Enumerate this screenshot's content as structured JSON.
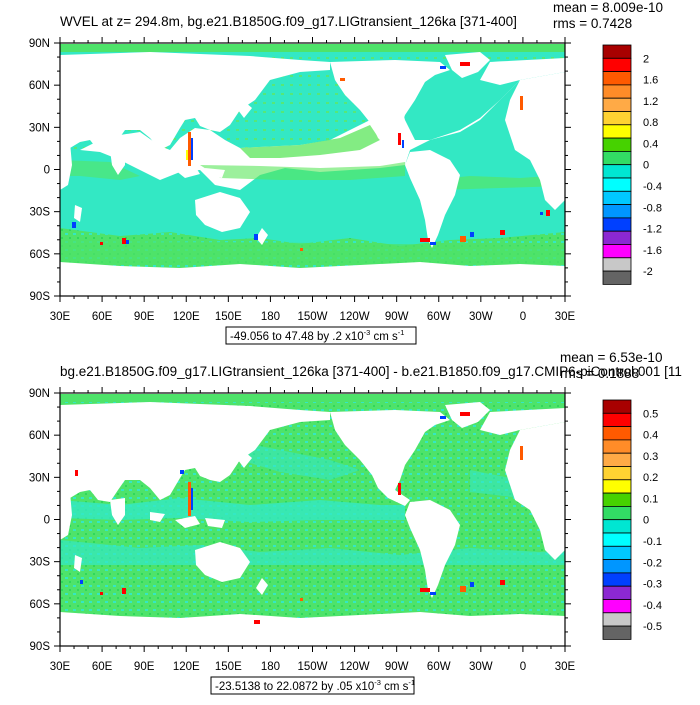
{
  "panels": [
    {
      "title": "WVEL at z= 294.8m, bg.e21.B1850G.f09_g17.LIGtransient_126ka [371-400]",
      "stat_mean": "mean = 8.009e-10",
      "stat_rms": "rms = 0.7428",
      "range_text": "-49.056 to 47.48 by .2 x10",
      "range_exp": "-3",
      "range_unit": " cm s",
      "range_unit_exp": "-1",
      "colorbar_labels": [
        "2",
        "1.6",
        "1.2",
        "0.8",
        "0.4",
        "0",
        "-0.4",
        "-0.8",
        "-1.2",
        "-1.6",
        "-2"
      ]
    },
    {
      "title": "bg.e21.B1850G.f09_g17.LIGtransient_126ka [371-400] - b.e21.B1850.f09_g17.CMIP6-piControl.001 [11",
      "stat_mean": "mean = 6.53e-10",
      "stat_rms": "rms = 0.1888",
      "range_text": "-23.5138 to 22.0872 by .05 x10",
      "range_exp": "-3",
      "range_unit": " cm s",
      "range_unit_exp": "-1",
      "colorbar_labels": [
        "0.5",
        "0.4",
        "0.3",
        "0.2",
        "0.1",
        "0",
        "-0.1",
        "-0.2",
        "-0.3",
        "-0.4",
        "-0.5"
      ]
    }
  ],
  "lat_labels": [
    "90N",
    "60N",
    "30N",
    "0",
    "30S",
    "60S",
    "90S"
  ],
  "lon_labels": [
    "30E",
    "60E",
    "90E",
    "120E",
    "150E",
    "180",
    "150W",
    "120W",
    "90W",
    "60W",
    "30W",
    "0",
    "30E"
  ],
  "colorbar_colors": [
    "#a80000",
    "#ff0000",
    "#ff5a00",
    "#ff8c28",
    "#ffaa46",
    "#ffd232",
    "#ffff00",
    "#46d200",
    "#32dc64",
    "#00e6d2",
    "#00ffff",
    "#00c8ff",
    "#0096ff",
    "#0040ff",
    "#8c28d2",
    "#ff00ff",
    "#c8c8c8",
    "#646464"
  ],
  "ocean_colors": {
    "base": "#33e8c4",
    "green": "#5ae65a",
    "lime": "#3ccd3c"
  }
}
